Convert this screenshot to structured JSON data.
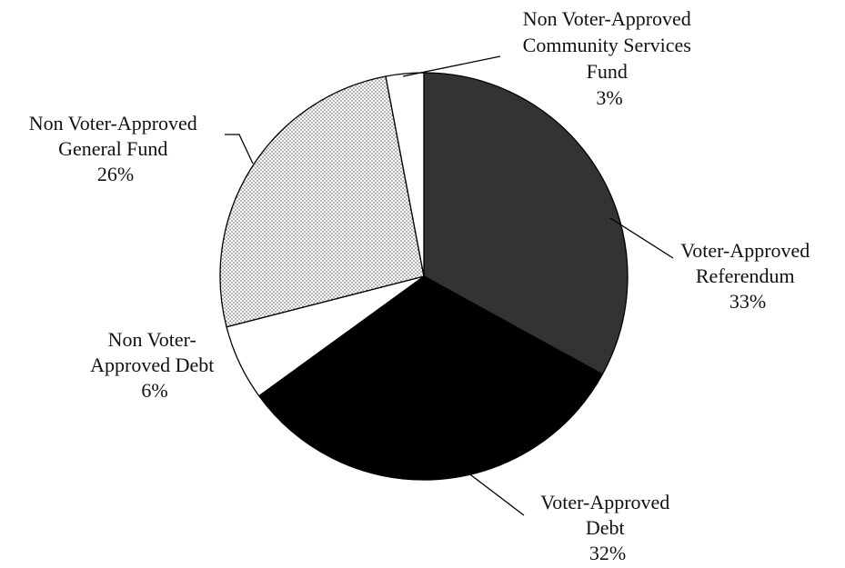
{
  "chart_data": {
    "type": "pie",
    "title": "",
    "slices": [
      {
        "label_lines": [
          "Voter-Approved",
          "Referendum"
        ],
        "value": 33,
        "percent_label": "33%",
        "fill": "#333333",
        "pattern": "solid"
      },
      {
        "label_lines": [
          "Voter-Approved",
          "Debt"
        ],
        "value": 32,
        "percent_label": "32%",
        "fill": "#000000",
        "pattern": "solid"
      },
      {
        "label_lines": [
          "Non Voter-",
          "Approved Debt"
        ],
        "value": 6,
        "percent_label": "6%",
        "fill": "#ffffff",
        "pattern": "solid"
      },
      {
        "label_lines": [
          "Non Voter-Approved",
          "General Fund"
        ],
        "value": 26,
        "percent_label": "26%",
        "fill": "#ffffff",
        "pattern": "dots"
      },
      {
        "label_lines": [
          "Non Voter-Approved",
          "Community Services",
          "Fund"
        ],
        "value": 3,
        "percent_label": "3%",
        "fill": "#ffffff",
        "pattern": "solid"
      }
    ],
    "start": "12 o'clock",
    "direction": "clockwise",
    "legend": "none",
    "colors": {
      "outline": "#000000",
      "dots": "#555555"
    }
  }
}
